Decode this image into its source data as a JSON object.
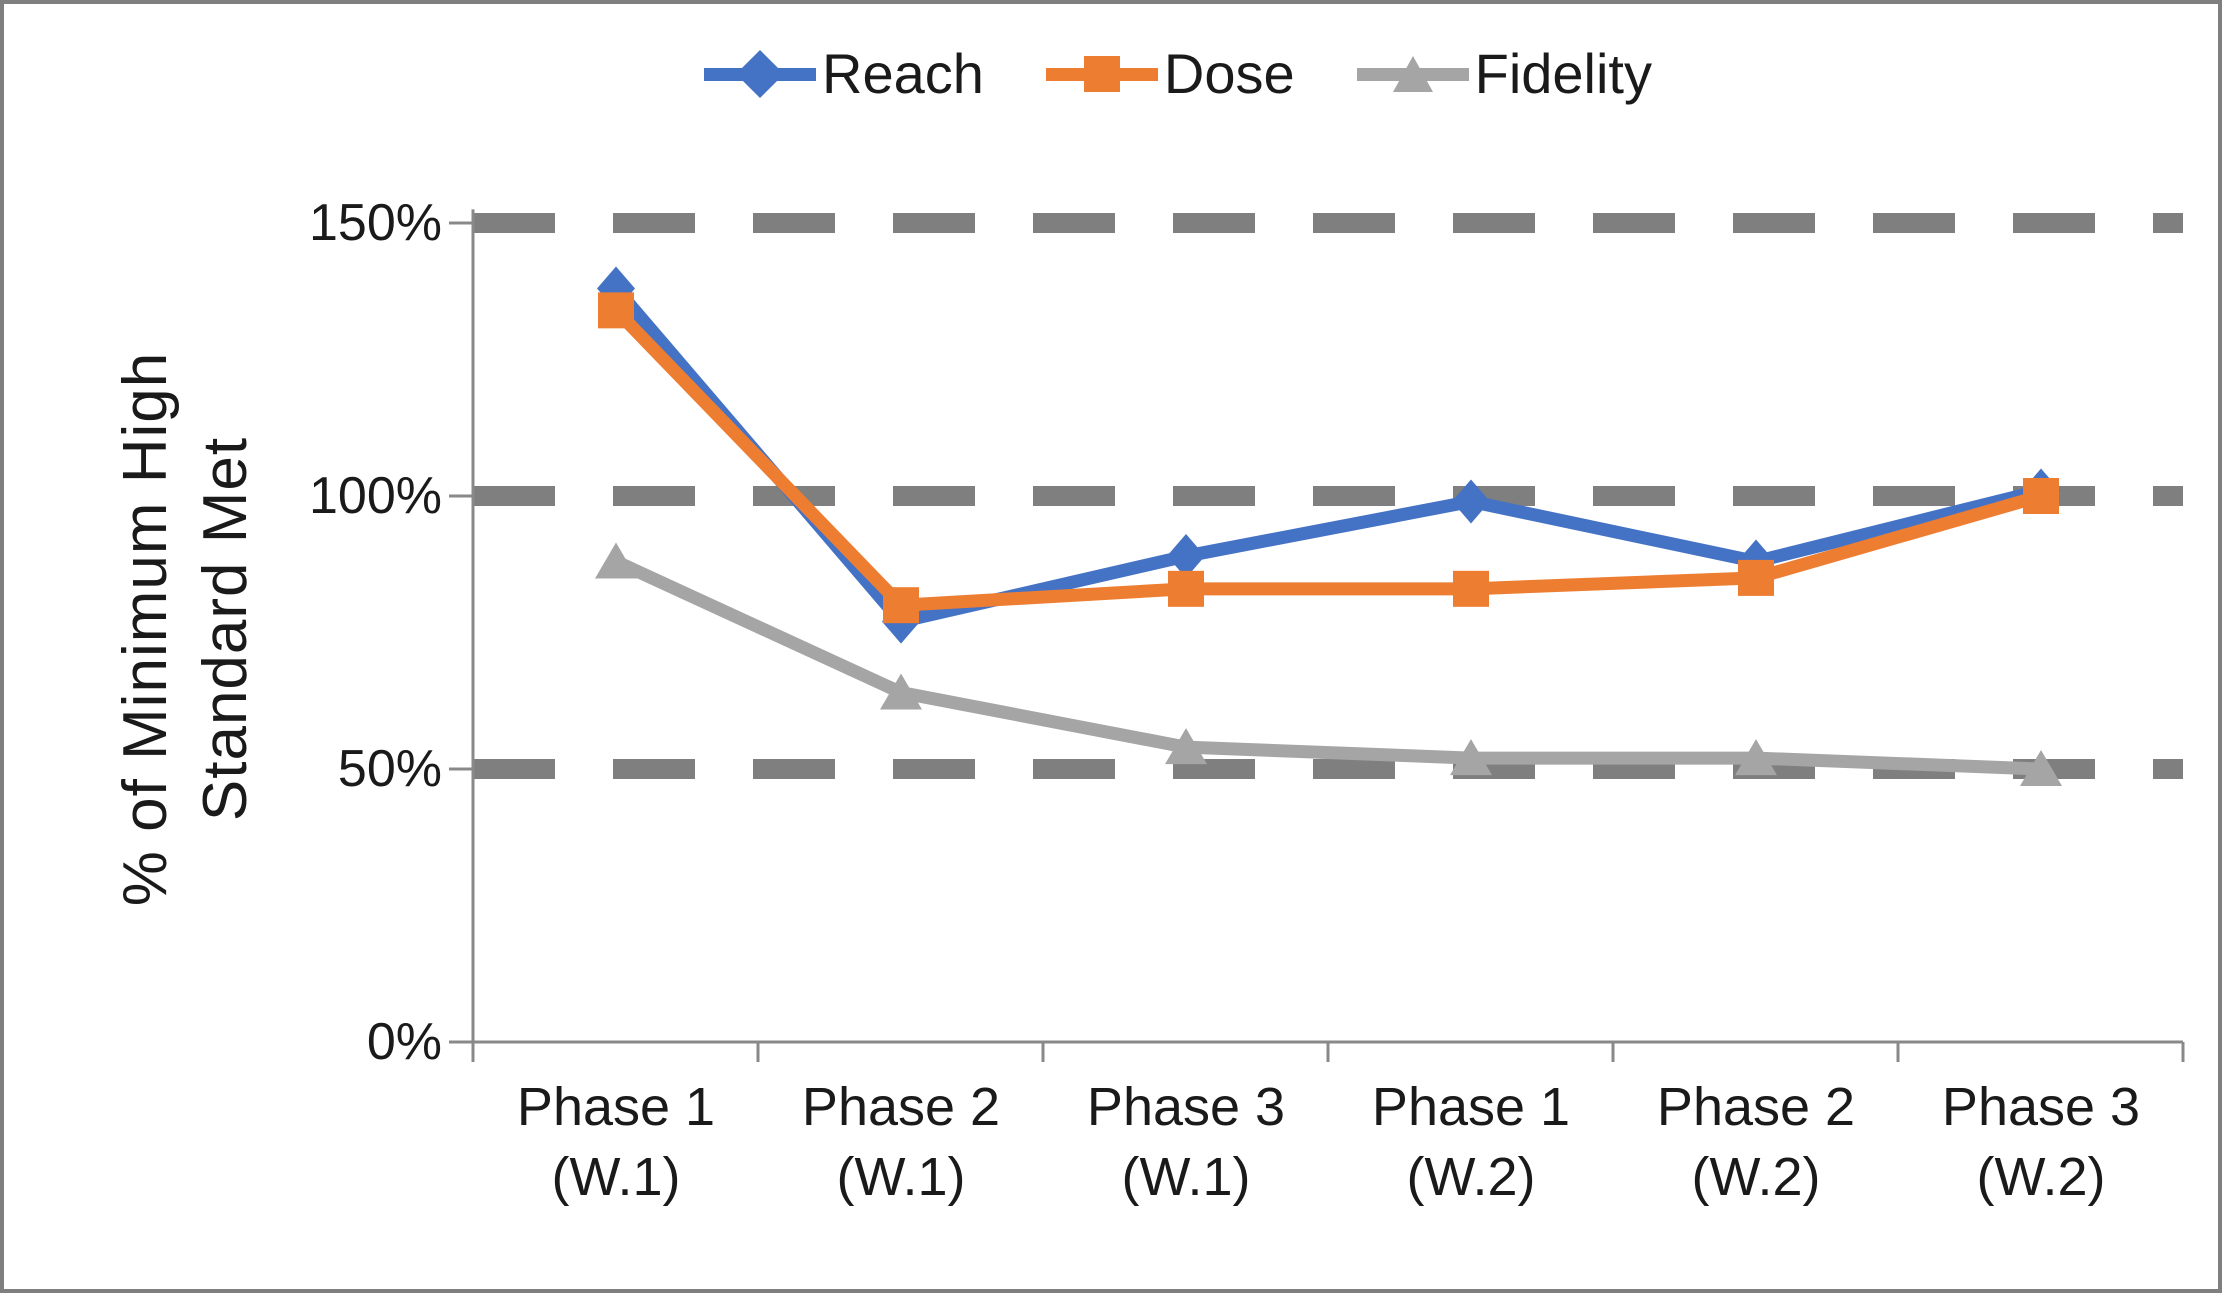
{
  "figure": {
    "background": "#FFFFFF",
    "border_color": "#7F7F7F",
    "axis_color": "#898989",
    "text_color": "#1a1a1a"
  },
  "chart_data": {
    "type": "line",
    "title": "",
    "xlabel": "",
    "ylabel": "% of Minimum High Standard Met",
    "ylabel_lines": [
      "% of Minimum High",
      "Standard Met"
    ],
    "categories": [
      [
        "Phase 1",
        "(W.1)"
      ],
      [
        "Phase 2",
        "(W.1)"
      ],
      [
        "Phase 3",
        "(W.1)"
      ],
      [
        "Phase 1",
        "(W.2)"
      ],
      [
        "Phase 2",
        "(W.2)"
      ],
      [
        "Phase 3",
        "(W.2)"
      ]
    ],
    "series": [
      {
        "name": "Reach",
        "color": "#4472C4",
        "marker": "diamond",
        "values": [
          138,
          77,
          89,
          99,
          88,
          101
        ]
      },
      {
        "name": "Dose",
        "color": "#ED7D31",
        "marker": "square",
        "values": [
          134,
          80,
          83,
          83,
          85,
          100
        ]
      },
      {
        "name": "Fidelity",
        "color": "#A5A5A5",
        "marker": "triangle",
        "values": [
          88,
          64,
          54,
          52,
          52,
          50
        ]
      }
    ],
    "yticks": [
      {
        "label": "150%",
        "value": 150
      },
      {
        "label": "100%",
        "value": 100
      },
      {
        "label": "50%",
        "value": 50
      },
      {
        "label": "0%",
        "value": 0
      }
    ],
    "ylim": [
      0,
      152.5
    ],
    "grid": "horizontal-dashed",
    "gridline_values": [
      50,
      100,
      150
    ],
    "gridline_color": "#7F7F7F",
    "legend_position": "top-center"
  }
}
